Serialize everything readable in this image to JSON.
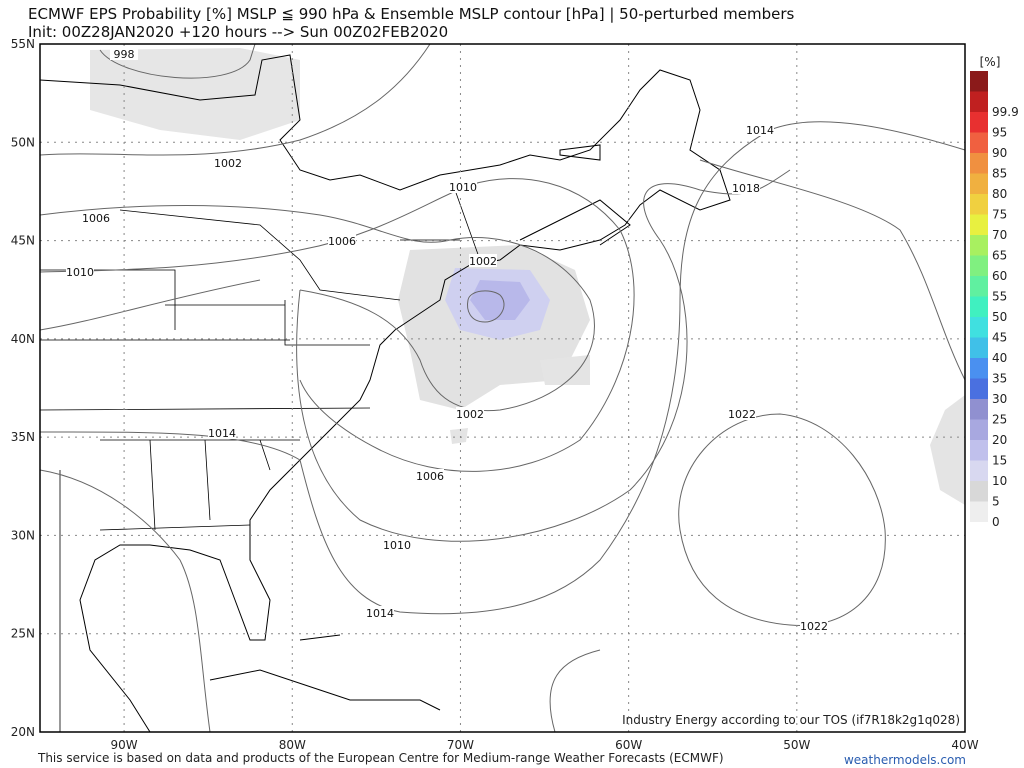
{
  "header": {
    "title": "ECMWF EPS Probability [%] MSLP ≦ 990 hPa & Ensemble MSLP contour [hPa] | 50-perturbed members",
    "subtitle": "Init: 00Z28JAN2020 +120 hours --> Sun 00Z02FEB2020"
  },
  "map": {
    "lat_labels": [
      "55N",
      "50N",
      "45N",
      "40N",
      "35N",
      "30N",
      "25N",
      "20N"
    ],
    "lon_labels": [
      "90W",
      "80W",
      "70W",
      "60W",
      "50W",
      "40W"
    ],
    "contour_labels": [
      998,
      1002,
      1006,
      1010,
      1006,
      1010,
      1014,
      1018,
      1014,
      1002,
      1006,
      1010,
      1014,
      1002,
      1022,
      1022
    ],
    "notice": "Industry Energy according to our TOS (if7R18k2g1q028)"
  },
  "colorbar": {
    "unit": "[%]",
    "levels": [
      0,
      5,
      10,
      15,
      20,
      25,
      30,
      35,
      40,
      45,
      50,
      55,
      60,
      65,
      70,
      75,
      80,
      85,
      90,
      95,
      99.9
    ],
    "colors": [
      "#eeeeee",
      "#d8d8d8",
      "#d8d8f0",
      "#c0c0ec",
      "#a8a8e0",
      "#9090d0",
      "#4a70e0",
      "#4a90f0",
      "#40c0e8",
      "#40e0e0",
      "#40f0c0",
      "#60f0a0",
      "#80f080",
      "#a8f060",
      "#e8f040",
      "#f0d040",
      "#f0b040",
      "#f09040",
      "#f06040",
      "#e83030",
      "#c02020"
    ]
  },
  "footer": {
    "source": "This service is based on data and products of the European Centre for Medium-range Weather Forecasts (ECMWF)",
    "site": "weathermodels.com"
  }
}
